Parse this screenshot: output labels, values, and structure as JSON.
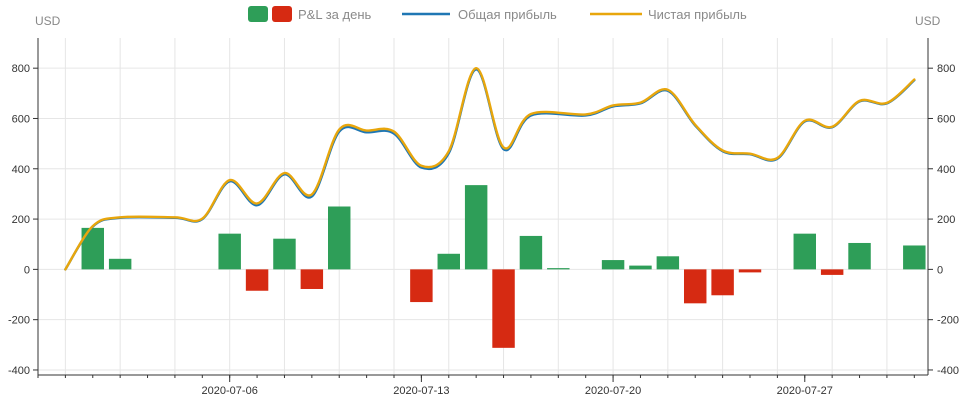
{
  "chart_data": {
    "type": "bar",
    "y_unit_left": "USD",
    "y_unit_right": "USD",
    "ylim": [
      -420,
      920
    ],
    "yticks": [
      -400,
      -200,
      0,
      200,
      400,
      600,
      800
    ],
    "x_tick_labels": [
      {
        "date": "2020-07-06",
        "label": "2020-07-06"
      },
      {
        "date": "2020-07-13",
        "label": "2020-07-13"
      },
      {
        "date": "2020-07-20",
        "label": "2020-07-20"
      },
      {
        "date": "2020-07-27",
        "label": "2020-07-27"
      }
    ],
    "x_range": [
      "2020-06-29",
      "2020-07-31"
    ],
    "grid": true,
    "legend_position": "top-center",
    "series": [
      {
        "name": "P&L за день",
        "kind": "bar",
        "color_positive": "#2e9e58",
        "color_negative": "#d62a12",
        "points": [
          {
            "x": "2020-07-01",
            "y": 165
          },
          {
            "x": "2020-07-02",
            "y": 42
          },
          {
            "x": "2020-07-06",
            "y": 142
          },
          {
            "x": "2020-07-07",
            "y": -85
          },
          {
            "x": "2020-07-08",
            "y": 122
          },
          {
            "x": "2020-07-09",
            "y": -78
          },
          {
            "x": "2020-07-10",
            "y": 250
          },
          {
            "x": "2020-07-13",
            "y": -130
          },
          {
            "x": "2020-07-14",
            "y": 62
          },
          {
            "x": "2020-07-15",
            "y": 335
          },
          {
            "x": "2020-07-16",
            "y": -312
          },
          {
            "x": "2020-07-17",
            "y": 133
          },
          {
            "x": "2020-07-18",
            "y": 5
          },
          {
            "x": "2020-07-20",
            "y": 37
          },
          {
            "x": "2020-07-21",
            "y": 15
          },
          {
            "x": "2020-07-22",
            "y": 52
          },
          {
            "x": "2020-07-23",
            "y": -135
          },
          {
            "x": "2020-07-24",
            "y": -103
          },
          {
            "x": "2020-07-25",
            "y": -12
          },
          {
            "x": "2020-07-27",
            "y": 142
          },
          {
            "x": "2020-07-28",
            "y": -22
          },
          {
            "x": "2020-07-29",
            "y": 105
          },
          {
            "x": "2020-07-31",
            "y": 95
          }
        ]
      },
      {
        "name": "Общая прибыль",
        "kind": "line",
        "color": "#1f77b4",
        "points": [
          {
            "x": "2020-06-30",
            "y": 0
          },
          {
            "x": "2020-07-01",
            "y": 170
          },
          {
            "x": "2020-07-02",
            "y": 205
          },
          {
            "x": "2020-07-04",
            "y": 205
          },
          {
            "x": "2020-07-05",
            "y": 200
          },
          {
            "x": "2020-07-06",
            "y": 350
          },
          {
            "x": "2020-07-07",
            "y": 255
          },
          {
            "x": "2020-07-08",
            "y": 378
          },
          {
            "x": "2020-07-09",
            "y": 290
          },
          {
            "x": "2020-07-10",
            "y": 548
          },
          {
            "x": "2020-07-11",
            "y": 545
          },
          {
            "x": "2020-07-12",
            "y": 540
          },
          {
            "x": "2020-07-13",
            "y": 405
          },
          {
            "x": "2020-07-14",
            "y": 462
          },
          {
            "x": "2020-07-15",
            "y": 795
          },
          {
            "x": "2020-07-16",
            "y": 478
          },
          {
            "x": "2020-07-17",
            "y": 612
          },
          {
            "x": "2020-07-19",
            "y": 612
          },
          {
            "x": "2020-07-20",
            "y": 648
          },
          {
            "x": "2020-07-21",
            "y": 660
          },
          {
            "x": "2020-07-22",
            "y": 710
          },
          {
            "x": "2020-07-23",
            "y": 572
          },
          {
            "x": "2020-07-24",
            "y": 470
          },
          {
            "x": "2020-07-25",
            "y": 458
          },
          {
            "x": "2020-07-26",
            "y": 440
          },
          {
            "x": "2020-07-27",
            "y": 588
          },
          {
            "x": "2020-07-28",
            "y": 565
          },
          {
            "x": "2020-07-29",
            "y": 668
          },
          {
            "x": "2020-07-30",
            "y": 660
          },
          {
            "x": "2020-07-31",
            "y": 752
          }
        ]
      },
      {
        "name": "Чистая прибыль",
        "kind": "line",
        "color": "#e8a60c",
        "points": [
          {
            "x": "2020-06-30",
            "y": 0
          },
          {
            "x": "2020-07-01",
            "y": 172
          },
          {
            "x": "2020-07-02",
            "y": 207
          },
          {
            "x": "2020-07-04",
            "y": 207
          },
          {
            "x": "2020-07-05",
            "y": 202
          },
          {
            "x": "2020-07-06",
            "y": 355
          },
          {
            "x": "2020-07-07",
            "y": 262
          },
          {
            "x": "2020-07-08",
            "y": 383
          },
          {
            "x": "2020-07-09",
            "y": 298
          },
          {
            "x": "2020-07-10",
            "y": 556
          },
          {
            "x": "2020-07-11",
            "y": 552
          },
          {
            "x": "2020-07-12",
            "y": 548
          },
          {
            "x": "2020-07-13",
            "y": 412
          },
          {
            "x": "2020-07-14",
            "y": 470
          },
          {
            "x": "2020-07-15",
            "y": 800
          },
          {
            "x": "2020-07-16",
            "y": 485
          },
          {
            "x": "2020-07-17",
            "y": 618
          },
          {
            "x": "2020-07-19",
            "y": 616
          },
          {
            "x": "2020-07-20",
            "y": 652
          },
          {
            "x": "2020-07-21",
            "y": 663
          },
          {
            "x": "2020-07-22",
            "y": 714
          },
          {
            "x": "2020-07-23",
            "y": 575
          },
          {
            "x": "2020-07-24",
            "y": 473
          },
          {
            "x": "2020-07-25",
            "y": 460
          },
          {
            "x": "2020-07-26",
            "y": 443
          },
          {
            "x": "2020-07-27",
            "y": 591
          },
          {
            "x": "2020-07-28",
            "y": 567
          },
          {
            "x": "2020-07-29",
            "y": 670
          },
          {
            "x": "2020-07-30",
            "y": 662
          },
          {
            "x": "2020-07-31",
            "y": 755
          }
        ]
      }
    ]
  }
}
